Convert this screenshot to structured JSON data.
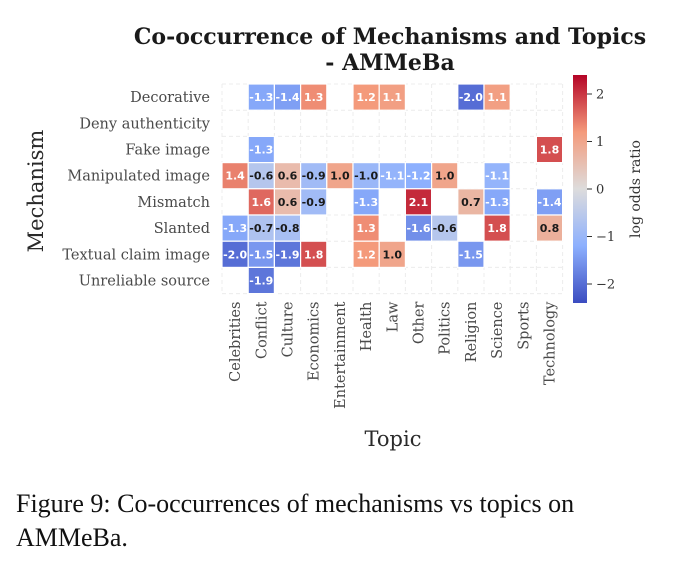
{
  "chart_data": {
    "type": "heatmap",
    "title_lines": [
      "Co-occurrence of Mechanisms and Topics",
      "- AMMeBa"
    ],
    "xlabel": "Topic",
    "ylabel": "Mechanism",
    "colorbar_label": "log odds ratio",
    "colorbar_ticks": [
      "2",
      "1",
      "0",
      "−1",
      "−2"
    ],
    "color_range": [
      -2.4,
      2.4
    ],
    "colormap": [
      "#3b4cc0",
      "#8db0fe",
      "#dddcdc",
      "#f49a7b",
      "#b40426"
    ],
    "grid": true,
    "x_categories": [
      "Celebrities",
      "Conflict",
      "Culture",
      "Economics",
      "Entertainment",
      "Health",
      "Law",
      "Other",
      "Politics",
      "Religion",
      "Science",
      "Sports",
      "Technology"
    ],
    "y_categories": [
      "Decorative",
      "Deny authenticity",
      "Fake image",
      "Manipulated image",
      "Mismatch",
      "Slanted",
      "Textual claim image",
      "Unreliable source"
    ],
    "values": [
      [
        null,
        -1.3,
        -1.4,
        1.3,
        null,
        1.2,
        1.1,
        null,
        null,
        -2.0,
        1.1,
        null,
        null
      ],
      [
        null,
        null,
        null,
        null,
        null,
        null,
        null,
        null,
        null,
        null,
        null,
        null,
        null
      ],
      [
        null,
        -1.3,
        null,
        null,
        null,
        null,
        null,
        null,
        null,
        null,
        null,
        null,
        1.8
      ],
      [
        1.4,
        -0.6,
        0.6,
        -0.9,
        1.0,
        -1.0,
        -1.1,
        -1.2,
        1.0,
        null,
        -1.1,
        null,
        null
      ],
      [
        null,
        1.6,
        0.6,
        -0.9,
        null,
        -1.3,
        null,
        2.1,
        null,
        0.7,
        -1.3,
        null,
        -1.4
      ],
      [
        -1.3,
        -0.7,
        -0.8,
        null,
        null,
        1.3,
        null,
        -1.6,
        -0.6,
        null,
        1.8,
        null,
        0.8
      ],
      [
        -2.0,
        -1.5,
        -1.9,
        1.8,
        null,
        1.2,
        1.0,
        null,
        null,
        -1.5,
        null,
        null,
        null
      ],
      [
        null,
        -1.9,
        null,
        null,
        null,
        null,
        null,
        null,
        null,
        null,
        null,
        null,
        null
      ]
    ]
  },
  "caption": {
    "line1": "Figure 9: Co-occurrences of mechanisms vs topics on",
    "line2": "AMMeBa."
  }
}
